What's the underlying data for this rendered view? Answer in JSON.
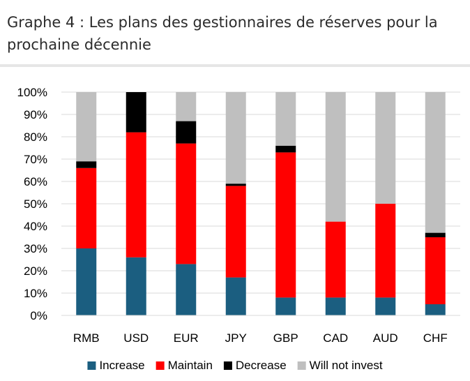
{
  "heading": "Graphe 4 : Les plans des gestionnaires de réserves pour la prochaine décennie",
  "chart_data": {
    "type": "bar",
    "stacked": true,
    "title": "",
    "xlabel": "",
    "ylabel": "",
    "ylim": [
      0,
      100
    ],
    "yticks": [
      "0%",
      "10%",
      "20%",
      "30%",
      "40%",
      "50%",
      "60%",
      "70%",
      "80%",
      "90%",
      "100%"
    ],
    "categories": [
      "RMB",
      "USD",
      "EUR",
      "JPY",
      "GBP",
      "CAD",
      "AUD",
      "CHF"
    ],
    "series": [
      {
        "name": "Increase",
        "color": "#1b5e80",
        "values": [
          30,
          26,
          23,
          17,
          8,
          8,
          8,
          5
        ]
      },
      {
        "name": "Maintain",
        "color": "#ff0000",
        "values": [
          36,
          56,
          54,
          41,
          65,
          34,
          42,
          30
        ]
      },
      {
        "name": "Decrease",
        "color": "#000000",
        "values": [
          3,
          18,
          10,
          1,
          3,
          0,
          0,
          2
        ]
      },
      {
        "name": "Will not invest",
        "color": "#bfbfbf",
        "values": [
          31,
          0,
          13,
          41,
          24,
          58,
          50,
          63
        ]
      }
    ],
    "legend_position": "bottom"
  }
}
